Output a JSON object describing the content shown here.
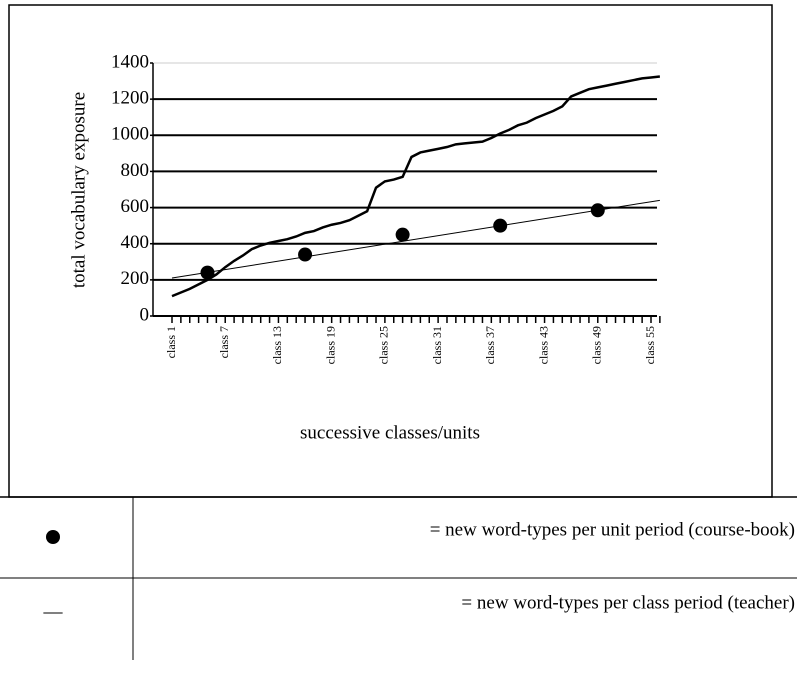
{
  "chart_data": {
    "type": "line",
    "y_label": "total vocabulary exposure",
    "x_label": "successive classes/units",
    "categories": [
      "class 1",
      null,
      null,
      null,
      null,
      null,
      "class 7",
      null,
      null,
      null,
      null,
      null,
      "class 13",
      null,
      null,
      null,
      null,
      null,
      "class 19",
      null,
      null,
      null,
      null,
      null,
      "class 25",
      null,
      null,
      null,
      null,
      null,
      "class 31",
      null,
      null,
      null,
      null,
      null,
      "class 37",
      null,
      null,
      null,
      null,
      null,
      "class 43",
      null,
      null,
      null,
      null,
      null,
      "class 49",
      null,
      null,
      null,
      null,
      null,
      "class 55",
      null
    ],
    "series": [
      {
        "kind": "line",
        "color": "#000000",
        "values": [
          110,
          130,
          150,
          175,
          200,
          230,
          270,
          305,
          335,
          370,
          390,
          405,
          415,
          425,
          440,
          460,
          470,
          490,
          505,
          515,
          530,
          555,
          580,
          710,
          745,
          755,
          770,
          880,
          905,
          915,
          925,
          935,
          950,
          955,
          960,
          965,
          985,
          1010,
          1030,
          1055,
          1070,
          1095,
          1115,
          1135,
          1160,
          1215,
          1235,
          1255,
          1265,
          1275,
          1285,
          1295,
          1305,
          1315,
          1320,
          1325
        ]
      },
      {
        "kind": "dots",
        "color": "#000000",
        "values": [
          null,
          null,
          null,
          null,
          240,
          null,
          null,
          null,
          null,
          null,
          null,
          null,
          null,
          null,
          null,
          340,
          null,
          null,
          null,
          null,
          null,
          null,
          null,
          null,
          null,
          null,
          450,
          null,
          null,
          null,
          null,
          null,
          null,
          null,
          null,
          null,
          null,
          500,
          null,
          null,
          null,
          null,
          null,
          null,
          null,
          null,
          null,
          null,
          585,
          null,
          null,
          null,
          null,
          null,
          null,
          null
        ]
      }
    ],
    "trend": {
      "values": [
        210,
        640
      ]
    },
    "ylim": [
      0,
      1400
    ],
    "yticks": [
      0,
      200,
      400,
      600,
      800,
      1000,
      1200,
      1400
    ],
    "grid": true
  },
  "legend_table": {
    "rows": [
      {
        "description": "= new word-types per unit period (course-book)"
      },
      {
        "symbol": "—",
        "description": "= new word-types per class period (teacher)"
      }
    ]
  }
}
